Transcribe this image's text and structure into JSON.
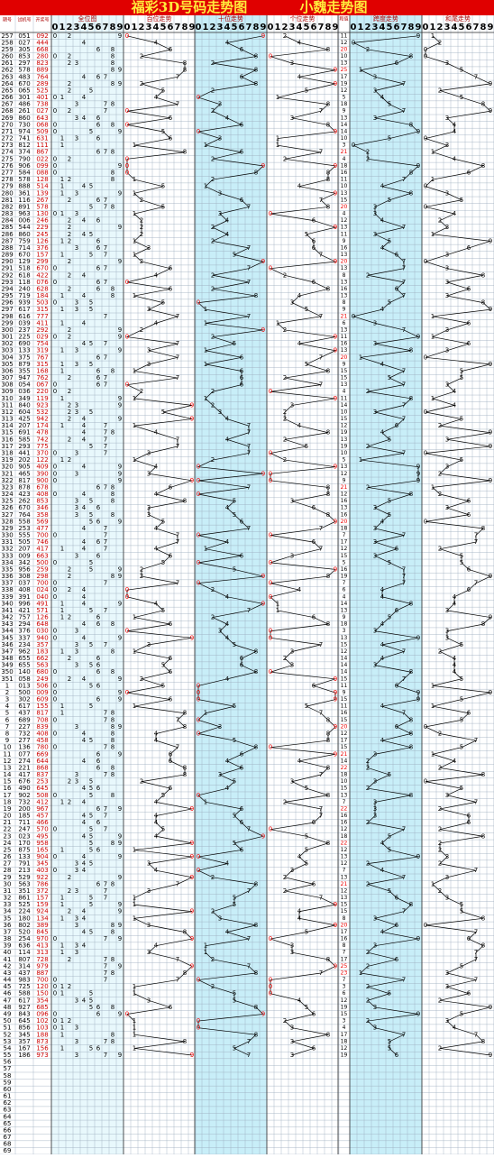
{
  "header": {
    "title": "福彩3D号码走势图",
    "subtitle": "小魏走势图"
  },
  "columns": [
    "期号",
    "试机号",
    "开奖号"
  ],
  "sections": [
    "全位图",
    "百位走势",
    "十位走势",
    "个位走势",
    "和值",
    "跨度走势",
    "和尾走势"
  ],
  "digits": [
    "0",
    "1",
    "2",
    "3",
    "4",
    "5",
    "6",
    "7",
    "8",
    "9"
  ],
  "rows": [
    [
      "257",
      "051",
      "092",
      11,
      9,
      1
    ],
    [
      "258",
      "027",
      "444",
      12,
      0,
      2
    ],
    [
      "259",
      "305",
      "668",
      20,
      2,
      0
    ],
    [
      "260",
      "853",
      "280",
      10,
      8,
      0
    ],
    [
      "261",
      "297",
      "823",
      13,
      6,
      3
    ],
    [
      "262",
      "578",
      "889",
      25,
      1,
      5
    ],
    [
      "263",
      "483",
      "764",
      17,
      3,
      7
    ],
    [
      "264",
      "670",
      "289",
      19,
      7,
      9
    ],
    [
      "265",
      "065",
      "525",
      12,
      3,
      2
    ],
    [
      "266",
      "301",
      "401",
      5,
      4,
      5
    ],
    [
      "267",
      "486",
      "738",
      18,
      5,
      8
    ],
    [
      "268",
      "261",
      "027",
      9,
      7,
      9
    ],
    [
      "269",
      "860",
      "643",
      13,
      3,
      3
    ],
    [
      "270",
      "730",
      "068",
      14,
      8,
      4
    ],
    [
      "271",
      "974",
      "509",
      14,
      9,
      4
    ],
    [
      "272",
      "741",
      "631",
      10,
      5,
      0
    ],
    [
      "273",
      "812",
      "111",
      3,
      0,
      3
    ],
    [
      "274",
      "374",
      "867",
      21,
      2,
      1
    ],
    [
      "275",
      "790",
      "022",
      4,
      2,
      4
    ],
    [
      "276",
      "906",
      "099",
      18,
      9,
      8
    ],
    [
      "277",
      "584",
      "088",
      16,
      8,
      6
    ],
    [
      "278",
      "578",
      "128",
      11,
      7,
      1
    ],
    [
      "279",
      "888",
      "514",
      10,
      4,
      0
    ],
    [
      "280",
      "361",
      "139",
      13,
      8,
      3
    ],
    [
      "281",
      "116",
      "267",
      15,
      5,
      5
    ],
    [
      "282",
      "891",
      "578",
      20,
      3,
      0
    ],
    [
      "283",
      "963",
      "130",
      4,
      3,
      4
    ],
    [
      "284",
      "006",
      "246",
      12,
      4,
      2
    ],
    [
      "285",
      "544",
      "229",
      13,
      7,
      3
    ],
    [
      "286",
      "860",
      "245",
      11,
      3,
      1
    ],
    [
      "287",
      "759",
      "126",
      9,
      5,
      9
    ],
    [
      "288",
      "714",
      "376",
      16,
      4,
      6
    ],
    [
      "289",
      "670",
      "157",
      13,
      6,
      3
    ],
    [
      "290",
      "129",
      "299",
      20,
      7,
      0
    ],
    [
      "291",
      "518",
      "670",
      13,
      7,
      3
    ],
    [
      "292",
      "618",
      "422",
      8,
      2,
      8
    ],
    [
      "293",
      "118",
      "076",
      13,
      7,
      3
    ],
    [
      "294",
      "240",
      "628",
      16,
      6,
      6
    ],
    [
      "295",
      "719",
      "184",
      13,
      7,
      3
    ],
    [
      "296",
      "939",
      "503",
      8,
      5,
      8
    ],
    [
      "297",
      "617",
      "315",
      9,
      4,
      9
    ],
    [
      "298",
      "616",
      "777",
      21,
      0,
      1
    ],
    [
      "299",
      "039",
      "411",
      6,
      3,
      6
    ],
    [
      "300",
      "237",
      "292",
      13,
      7,
      3
    ],
    [
      "301",
      "225",
      "029",
      11,
      9,
      1
    ],
    [
      "302",
      "690",
      "754",
      16,
      3,
      6
    ],
    [
      "303",
      "133",
      "319",
      13,
      8,
      3
    ],
    [
      "304",
      "375",
      "767",
      20,
      1,
      0
    ],
    [
      "305",
      "879",
      "315",
      9,
      4,
      9
    ],
    [
      "306",
      "355",
      "168",
      15,
      7,
      5
    ],
    [
      "307",
      "947",
      "762",
      15,
      5,
      5
    ],
    [
      "308",
      "054",
      "067",
      13,
      7,
      3
    ],
    [
      "309",
      "036",
      "220",
      4,
      2,
      4
    ],
    [
      "310",
      "349",
      "119",
      11,
      8,
      1
    ],
    [
      "311",
      "840",
      "923",
      14,
      7,
      4
    ],
    [
      "312",
      "604",
      "532",
      10,
      3,
      0
    ],
    [
      "313",
      "425",
      "942",
      15,
      7,
      5
    ],
    [
      "314",
      "207",
      "174",
      12,
      6,
      2
    ],
    [
      "315",
      "691",
      "478",
      19,
      4,
      9
    ],
    [
      "316",
      "585",
      "742",
      13,
      5,
      3
    ],
    [
      "317",
      "293",
      "775",
      19,
      2,
      9
    ],
    [
      "318",
      "441",
      "370",
      10,
      7,
      0
    ],
    [
      "319",
      "202",
      "122",
      5,
      1,
      5
    ],
    [
      "320",
      "905",
      "409",
      13,
      9,
      3
    ],
    [
      "321",
      "465",
      "390",
      12,
      9,
      2
    ],
    [
      "322",
      "817",
      "900",
      9,
      9,
      9
    ],
    [
      "323",
      "878",
      "678",
      21,
      2,
      1
    ],
    [
      "324",
      "423",
      "408",
      12,
      8,
      2
    ],
    [
      "325",
      "262",
      "853",
      16,
      5,
      6
    ],
    [
      "326",
      "670",
      "346",
      13,
      3,
      3
    ],
    [
      "327",
      "764",
      "358",
      16,
      5,
      6
    ],
    [
      "328",
      "558",
      "569",
      20,
      4,
      0
    ],
    [
      "329",
      "253",
      "477",
      18,
      3,
      8
    ],
    [
      "330",
      "555",
      "700",
      7,
      7,
      7
    ],
    [
      "331",
      "505",
      "746",
      17,
      3,
      7
    ],
    [
      "332",
      "207",
      "417",
      12,
      6,
      2
    ],
    [
      "333",
      "009",
      "663",
      15,
      3,
      5
    ],
    [
      "334",
      "342",
      "500",
      5,
      5,
      5
    ],
    [
      "335",
      "956",
      "259",
      16,
      7,
      6
    ],
    [
      "336",
      "308",
      "298",
      19,
      7,
      9
    ],
    [
      "337",
      "037",
      "700",
      7,
      7,
      7
    ],
    [
      "338",
      "408",
      "024",
      6,
      4,
      6
    ],
    [
      "339",
      "391",
      "040",
      4,
      4,
      4
    ],
    [
      "340",
      "996",
      "491",
      14,
      8,
      4
    ],
    [
      "341",
      "421",
      "571",
      13,
      6,
      3
    ],
    [
      "342",
      "757",
      "126",
      9,
      5,
      9
    ],
    [
      "343",
      "294",
      "648",
      18,
      4,
      8
    ],
    [
      "344",
      "376",
      "030",
      3,
      3,
      3
    ],
    [
      "345",
      "337",
      "940",
      13,
      9,
      3
    ],
    [
      "346",
      "234",
      "357",
      15,
      4,
      5
    ],
    [
      "347",
      "962",
      "183",
      12,
      7,
      2
    ],
    [
      "348",
      "655",
      "662",
      14,
      4,
      4
    ],
    [
      "349",
      "655",
      "563",
      14,
      3,
      4
    ],
    [
      "350",
      "140",
      "680",
      14,
      8,
      4
    ],
    [
      "351",
      "058",
      "249",
      15,
      7,
      5
    ],
    [
      "1",
      "013",
      "506",
      11,
      6,
      1
    ],
    [
      "2",
      "500",
      "009",
      9,
      9,
      9
    ],
    [
      "3",
      "302",
      "609",
      15,
      9,
      5
    ],
    [
      "4",
      "617",
      "155",
      11,
      4,
      1
    ],
    [
      "5",
      "437",
      "817",
      16,
      7,
      6
    ],
    [
      "6",
      "689",
      "708",
      15,
      8,
      5
    ],
    [
      "7",
      "227",
      "839",
      20,
      6,
      0
    ],
    [
      "8",
      "732",
      "408",
      12,
      8,
      2
    ],
    [
      "9",
      "277",
      "458",
      17,
      4,
      7
    ],
    [
      "10",
      "136",
      "780",
      15,
      8,
      5
    ],
    [
      "11",
      "077",
      "669",
      21,
      3,
      1
    ],
    [
      "12",
      "274",
      "644",
      14,
      2,
      4
    ],
    [
      "13",
      "221",
      "868",
      22,
      2,
      2
    ],
    [
      "14",
      "417",
      "837",
      18,
      5,
      8
    ],
    [
      "15",
      "676",
      "253",
      10,
      3,
      0
    ],
    [
      "16",
      "490",
      "645",
      15,
      2,
      5
    ],
    [
      "17",
      "902",
      "508",
      13,
      8,
      3
    ],
    [
      "18",
      "732",
      "412",
      7,
      3,
      7
    ],
    [
      "19",
      "200",
      "967",
      22,
      3,
      2
    ],
    [
      "20",
      "185",
      "457",
      16,
      3,
      6
    ],
    [
      "21",
      "711",
      "466",
      16,
      2,
      6
    ],
    [
      "22",
      "247",
      "570",
      12,
      7,
      2
    ],
    [
      "23",
      "023",
      "495",
      18,
      5,
      8
    ],
    [
      "24",
      "170",
      "958",
      22,
      4,
      2
    ],
    [
      "25",
      "875",
      "165",
      12,
      5,
      2
    ],
    [
      "26",
      "133",
      "904",
      13,
      9,
      3
    ],
    [
      "27",
      "791",
      "345",
      12,
      2,
      2
    ],
    [
      "28",
      "213",
      "403",
      7,
      4,
      7
    ],
    [
      "29",
      "529",
      "922",
      13,
      7,
      3
    ],
    [
      "30",
      "563",
      "786",
      21,
      2,
      1
    ],
    [
      "31",
      "351",
      "372",
      12,
      5,
      2
    ],
    [
      "32",
      "861",
      "157",
      13,
      6,
      3
    ],
    [
      "33",
      "525",
      "159",
      15,
      8,
      5
    ],
    [
      "34",
      "224",
      "924",
      15,
      7,
      5
    ],
    [
      "35",
      "180",
      "134",
      8,
      3,
      8
    ],
    [
      "36",
      "802",
      "389",
      20,
      6,
      0
    ],
    [
      "37",
      "520",
      "845",
      17,
      4,
      7
    ],
    [
      "38",
      "254",
      "970",
      16,
      9,
      6
    ],
    [
      "39",
      "636",
      "413",
      8,
      3,
      8
    ],
    [
      "40",
      "114",
      "313",
      7,
      2,
      7
    ],
    [
      "41",
      "807",
      "728",
      17,
      6,
      7
    ],
    [
      "42",
      "314",
      "979",
      25,
      2,
      5
    ],
    [
      "43",
      "437",
      "887",
      23,
      1,
      3
    ],
    [
      "44",
      "983",
      "700",
      7,
      7,
      7
    ],
    [
      "45",
      "725",
      "120",
      3,
      2,
      3
    ],
    [
      "46",
      "588",
      "150",
      6,
      5,
      6
    ],
    [
      "47",
      "617",
      "354",
      12,
      2,
      2
    ],
    [
      "48",
      "927",
      "685",
      19,
      3,
      9
    ],
    [
      "49",
      "843",
      "096",
      15,
      9,
      5
    ],
    [
      "50",
      "645",
      "102",
      3,
      2,
      3
    ],
    [
      "51",
      "856",
      "103",
      4,
      3,
      4
    ],
    [
      "52",
      "345",
      "188",
      17,
      7,
      7
    ],
    [
      "53",
      "357",
      "873",
      18,
      5,
      8
    ],
    [
      "54",
      "167",
      "156",
      12,
      5,
      2
    ],
    [
      "55",
      "186",
      "973",
      19,
      6,
      9
    ],
    [
      "56"
    ],
    [
      "57"
    ],
    [
      "58"
    ],
    [
      "59"
    ],
    [
      "60"
    ],
    [
      "61"
    ],
    [
      "62"
    ],
    [
      "63"
    ],
    [
      "64"
    ],
    [
      "65"
    ],
    [
      "66"
    ],
    [
      "67"
    ],
    [
      "68"
    ],
    [
      "69"
    ]
  ]
}
